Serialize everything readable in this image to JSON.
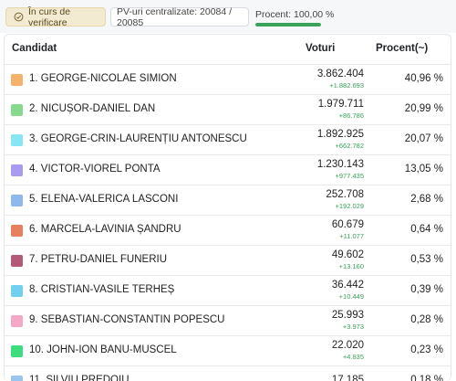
{
  "toolbar": {
    "status_label": "În curs de verificare",
    "pv_label": "PV-uri centralizate: 20084 / 20085",
    "percent_label": "Procent: 100,00 %",
    "progress_fraction": 1.0
  },
  "table": {
    "headers": {
      "candidate": "Candidat",
      "votes": "Voturi",
      "percent": "Procent(~)"
    },
    "rows": [
      {
        "name": "1. GEORGE-NICOLAE SIMION",
        "votes": "3.862.404",
        "delta": "+1.882.693",
        "percent": "40,96 %",
        "color": "#f6b26b"
      },
      {
        "name": "2. NICUȘOR-DANIEL DAN",
        "votes": "1.979.711",
        "delta": "+86.786",
        "percent": "20,99 %",
        "color": "#86d98f"
      },
      {
        "name": "3. GEORGE-CRIN-LAURENȚIU ANTONESCU",
        "votes": "1.892.925",
        "delta": "+662.782",
        "percent": "20,07 %",
        "color": "#86e6f2"
      },
      {
        "name": "4. VICTOR-VIOREL PONTA",
        "votes": "1.230.143",
        "delta": "+977.435",
        "percent": "13,05 %",
        "color": "#a99bf0"
      },
      {
        "name": "5. ELENA-VALERICA LASCONI",
        "votes": "252.708",
        "delta": "+192.029",
        "percent": "2,68 %",
        "color": "#8fb8ec"
      },
      {
        "name": "6. MARCELA-LAVINIA ȘANDRU",
        "votes": "60.679",
        "delta": "+11.077",
        "percent": "0,64 %",
        "color": "#e6815f"
      },
      {
        "name": "7. PETRU-DANIEL FUNERIU",
        "votes": "49.602",
        "delta": "+13.160",
        "percent": "0,53 %",
        "color": "#b35a78"
      },
      {
        "name": "8. CRISTIAN-VASILE TERHEȘ",
        "votes": "36.442",
        "delta": "+10.449",
        "percent": "0,39 %",
        "color": "#6fd0ef"
      },
      {
        "name": "9. SEBASTIAN-CONSTANTIN POPESCU",
        "votes": "25.993",
        "delta": "+3.973",
        "percent": "0,28 %",
        "color": "#f4a7c7"
      },
      {
        "name": "10. JOHN-ION BANU-MUSCEL",
        "votes": "22.020",
        "delta": "+4.835",
        "percent": "0,23 %",
        "color": "#3ddc7e"
      },
      {
        "name": "11. SILVIU PREDOIU",
        "votes": "17.185",
        "delta": "",
        "percent": "0,18 %",
        "color": "#9cc4f0"
      }
    ]
  }
}
